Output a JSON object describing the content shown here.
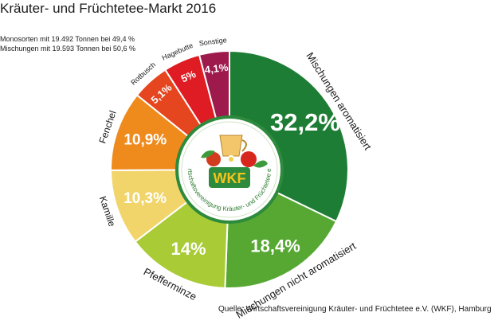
{
  "chart_data": {
    "type": "pie",
    "title": "Kräuter- und Früchtetee-Markt 2016",
    "notes": [
      "Monosorten mit 19.492 Tonnen bei 49,4 %",
      "Mischungen mit 19.593 Tonnen bei 50,6 %"
    ],
    "slices": [
      {
        "name": "Mischungen aromatisiert",
        "value": 32.2,
        "label": "32,2%",
        "color": "#1e7d35"
      },
      {
        "name": "Mischungen nicht aromatisiert",
        "value": 18.4,
        "label": "18,4%",
        "color": "#56a832"
      },
      {
        "name": "Pfefferminze",
        "value": 14,
        "label": "14%",
        "color": "#a9cb35"
      },
      {
        "name": "Kamille",
        "value": 10.3,
        "label": "10,3%",
        "color": "#f1d56a"
      },
      {
        "name": "Fenchel",
        "value": 10.9,
        "label": "10,9%",
        "color": "#ef8a1c"
      },
      {
        "name": "Rotbusch",
        "value": 5.1,
        "label": "5,1%",
        "color": "#e5461f"
      },
      {
        "name": "Hagebutte",
        "value": 5,
        "label": "5%",
        "color": "#df1b24"
      },
      {
        "name": "Sonstige",
        "value": 4.1,
        "label": "4,1%",
        "color": "#9e1a4c"
      }
    ],
    "source": "Quelle: Wirtschaftsvereinigung Kräuter- und Früchtetee e.V. (WKF), Hamburg"
  },
  "logo": {
    "abbreviation": "WKF",
    "ring_text": "Wirtschaftsvereinigung Kräuter- und Früchtetee e.V."
  }
}
